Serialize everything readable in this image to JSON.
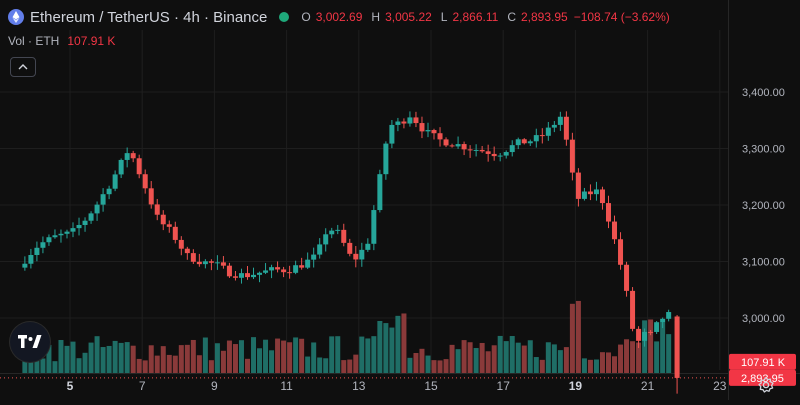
{
  "header": {
    "title": "Ethereum / TetherUS · 4h · Binance",
    "open_label": "O",
    "open": "3,002.69",
    "high_label": "H",
    "high": "3,005.22",
    "low_label": "L",
    "low": "2,866.11",
    "close_label": "C",
    "close": "2,893.95",
    "change": "−108.74 (−3.62%)"
  },
  "volume_legend": {
    "label": "Vol · ETH",
    "value": "107.91 K"
  },
  "price_axis": {
    "ticks": [
      "3,400.00",
      "3,300.00",
      "3,200.00",
      "3,100.00",
      "3,000.00"
    ],
    "last_volume_tag": "107.91 K",
    "last_price_tag": "2,893.95"
  },
  "time_axis": {
    "ticks": [
      {
        "label": "5",
        "bold": true
      },
      {
        "label": "7",
        "bold": false
      },
      {
        "label": "9",
        "bold": false
      },
      {
        "label": "11",
        "bold": false
      },
      {
        "label": "13",
        "bold": false
      },
      {
        "label": "15",
        "bold": false
      },
      {
        "label": "17",
        "bold": false
      },
      {
        "label": "19",
        "bold": true
      },
      {
        "label": "21",
        "bold": false
      },
      {
        "label": "23",
        "bold": false
      }
    ]
  },
  "colors": {
    "up": "#26a69a",
    "down": "#ef5350",
    "up_vol": "#1f6e66",
    "down_vol": "#8a3a3a",
    "background": "#0f0f0f",
    "grid": "#1e1e1e"
  },
  "icons": {
    "coin": "ethereum-coin-icon",
    "collapse": "chevron-up-icon",
    "logo": "tradingview-logo-icon",
    "settings": "gear-icon"
  },
  "chart_data": {
    "type": "candlestick",
    "symbol": "Ethereum / TetherUS",
    "interval": "4h",
    "exchange": "Binance",
    "x_ticks": [
      "5",
      "7",
      "9",
      "11",
      "13",
      "15",
      "17",
      "19",
      "21",
      "23"
    ],
    "ylim": [
      2840,
      3440
    ],
    "y_ticks": [
      3000,
      3100,
      3200,
      3300,
      3400
    ],
    "last_price": 2893.95,
    "last_volume": "107.91 K",
    "grid": true,
    "anchors": [
      [
        3.7,
        3085
      ],
      [
        4.0,
        3110
      ],
      [
        4.3,
        3130
      ],
      [
        4.8,
        3145
      ],
      [
        5.2,
        3150
      ],
      [
        5.6,
        3175
      ],
      [
        5.9,
        3200
      ],
      [
        6.3,
        3240
      ],
      [
        6.8,
        3300
      ],
      [
        7.2,
        3240
      ],
      [
        7.6,
        3175
      ],
      [
        8.0,
        3150
      ],
      [
        8.4,
        3110
      ],
      [
        8.8,
        3100
      ],
      [
        9.2,
        3095
      ],
      [
        9.6,
        3080
      ],
      [
        10.0,
        3075
      ],
      [
        10.4,
        3080
      ],
      [
        10.8,
        3085
      ],
      [
        11.2,
        3085
      ],
      [
        11.6,
        3095
      ],
      [
        12.0,
        3110
      ],
      [
        12.3,
        3160
      ],
      [
        12.6,
        3150
      ],
      [
        13.0,
        3100
      ],
      [
        13.4,
        3130
      ],
      [
        13.7,
        3230
      ],
      [
        14.0,
        3340
      ],
      [
        14.3,
        3345
      ],
      [
        14.6,
        3360
      ],
      [
        15.0,
        3330
      ],
      [
        15.4,
        3315
      ],
      [
        15.7,
        3310
      ],
      [
        16.0,
        3305
      ],
      [
        16.3,
        3300
      ],
      [
        16.7,
        3295
      ],
      [
        17.0,
        3290
      ],
      [
        17.3,
        3300
      ],
      [
        17.6,
        3310
      ],
      [
        18.0,
        3315
      ],
      [
        18.3,
        3325
      ],
      [
        18.6,
        3345
      ],
      [
        18.8,
        3360
      ],
      [
        18.95,
        3300
      ],
      [
        19.2,
        3210
      ],
      [
        19.5,
        3220
      ],
      [
        19.8,
        3225
      ],
      [
        20.0,
        3195
      ],
      [
        20.2,
        3150
      ],
      [
        20.4,
        3100
      ],
      [
        20.55,
        3055
      ],
      [
        20.7,
        3000
      ],
      [
        20.85,
        2945
      ],
      [
        21.0,
        2975
      ],
      [
        21.2,
        2965
      ],
      [
        21.45,
        2990
      ],
      [
        21.65,
        3005
      ]
    ],
    "final_candle": {
      "open": 3002.69,
      "high": 3005.22,
      "low": 2866.11,
      "close": 2893.95
    }
  }
}
